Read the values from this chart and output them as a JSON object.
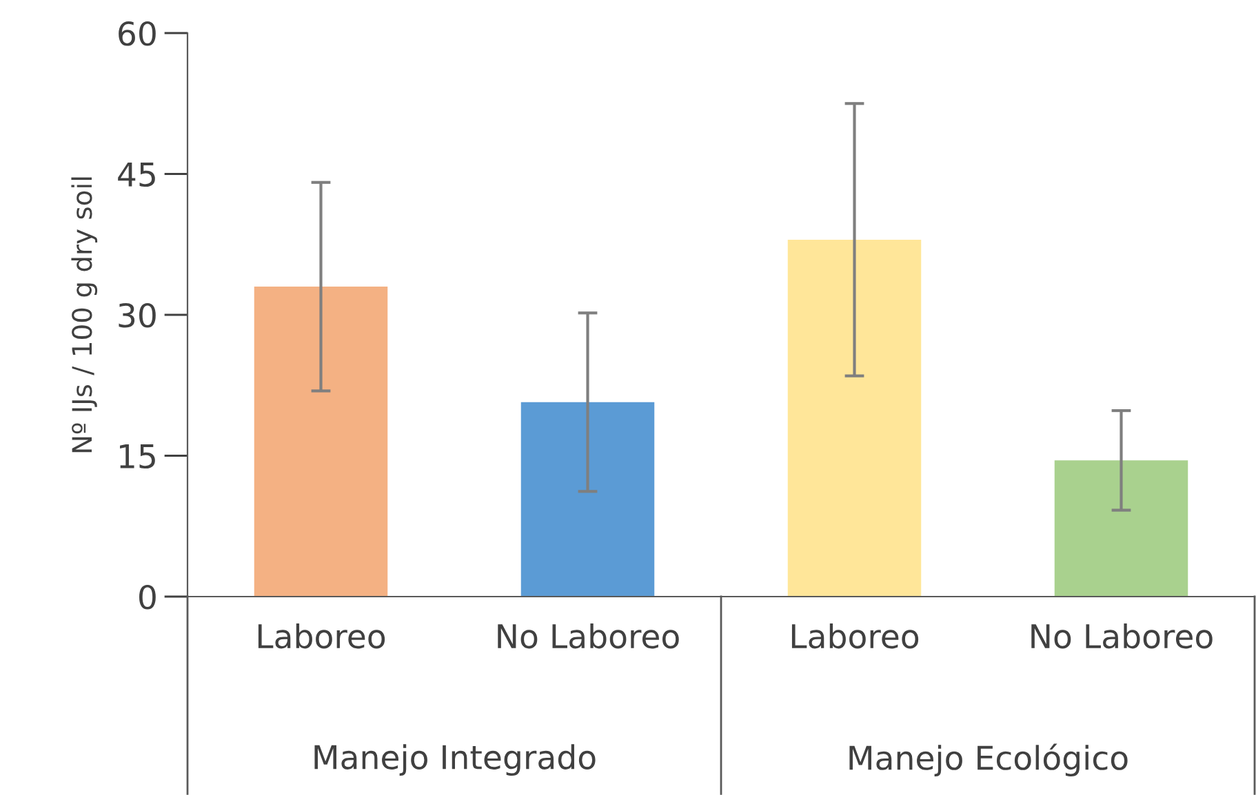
{
  "chart_data": {
    "type": "bar",
    "ylabel": "Nº IJs / 100 g dry soil",
    "categories": [
      "Laboreo",
      "No Laboreo",
      "Laboreo",
      "No Laboreo"
    ],
    "values": [
      33.0,
      20.7,
      38.0,
      14.5
    ],
    "errors": [
      11.1,
      9.5,
      14.5,
      5.3
    ],
    "colors": [
      "#f4b183",
      "#5b9bd5",
      "#ffe699",
      "#a9d18e"
    ],
    "annotations": [
      "Manejo Integrado",
      "Manejo Ecológico"
    ],
    "ylim": [
      0,
      60
    ],
    "yticks": [
      0,
      15,
      30,
      45,
      60
    ],
    "grid": false
  }
}
